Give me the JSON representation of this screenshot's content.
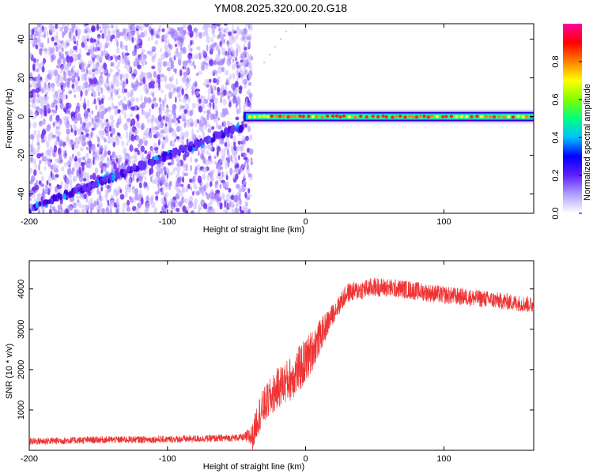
{
  "title": "YM08.2025.320.00.20.G18",
  "chart_data": [
    {
      "type": "heatmap",
      "title": "",
      "xlabel": "Height of straight line (km)",
      "ylabel": "Frequency (Hz)",
      "xlim": [
        -200,
        165
      ],
      "ylim": [
        -50,
        48
      ],
      "x_ticks": [
        -200,
        -100,
        0,
        100
      ],
      "y_ticks": [
        -40,
        -20,
        0,
        20,
        40
      ],
      "noise_region_x": [
        -200,
        -45
      ],
      "diagonal_track": {
        "x": [
          -200,
          -45
        ],
        "y": [
          -48,
          -5
        ]
      },
      "flat_track": {
        "x": [
          -45,
          165
        ],
        "y": [
          0,
          0
        ]
      },
      "colorbar": {
        "label": "Normalized spectral amplitude",
        "range": [
          0,
          1
        ],
        "ticks": [
          0.0,
          0.2,
          0.4,
          0.6,
          0.8
        ],
        "colors": [
          "#ffffff",
          "#b0a0ff",
          "#6020ff",
          "#0000ff",
          "#00c0ff",
          "#00ff80",
          "#80ff00",
          "#ffff00",
          "#ff8000",
          "#ff0000",
          "#ff00a0"
        ]
      }
    },
    {
      "type": "line",
      "title": "",
      "xlabel": "Height of straight line (km)",
      "ylabel": "SNR (10 * v/v)",
      "xlim": [
        -200,
        165
      ],
      "ylim": [
        0,
        4700
      ],
      "x_ticks": [
        -200,
        -100,
        0,
        100
      ],
      "y_ticks": [
        1000,
        2000,
        3000,
        4000
      ],
      "series": [
        {
          "color": "#ee3333",
          "envelope": {
            "x": [
              -200,
              -150,
              -100,
              -60,
              -45,
              -38,
              -35,
              -30,
              -20,
              -10,
              0,
              10,
              20,
              30,
              50,
              70,
              100,
              130,
              165
            ],
            "y": [
              220,
              260,
              270,
              300,
              320,
              350,
              800,
              1100,
              1550,
              1800,
              2200,
              2800,
              3400,
              3900,
              4050,
              4000,
              3850,
              3750,
              3600
            ]
          },
          "noise_amplitude": {
            "x": [
              -200,
              -45,
              -35,
              0,
              20,
              165
            ],
            "y": [
              90,
              90,
              450,
              600,
              250,
              200
            ]
          }
        }
      ]
    }
  ]
}
